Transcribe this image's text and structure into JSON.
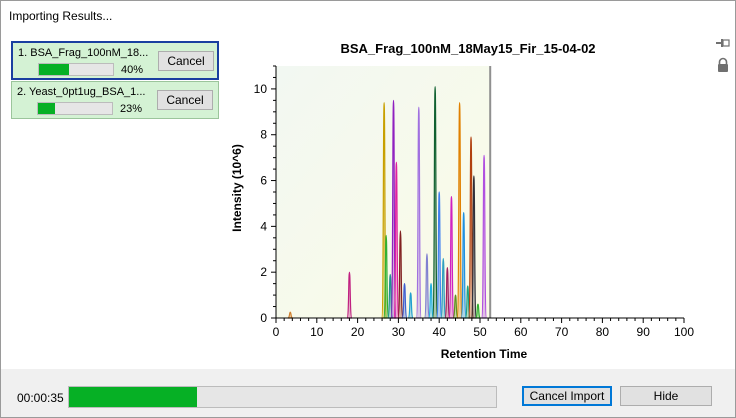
{
  "window": {
    "title": "Importing Results..."
  },
  "icons": {
    "pin": "pin-icon",
    "lock": "lock-icon"
  },
  "jobs": [
    {
      "label": "1. BSA_Frag_100nM_18...",
      "progress": 0.4,
      "percent_text": "40%",
      "cancel_label": "Cancel",
      "active": true
    },
    {
      "label": "2. Yeast_0pt1ug_BSA_1...",
      "progress": 0.23,
      "percent_text": "23%",
      "cancel_label": "Cancel",
      "active": false
    }
  ],
  "footer": {
    "elapsed": "00:00:35",
    "progress": 0.3,
    "cancel_import_label": "Cancel Import",
    "hide_label": "Hide"
  },
  "colors": {
    "progress_green": "#06b025",
    "job_bg": "#d4f2d4",
    "active_border": "#1a3fa0"
  },
  "chart_data": {
    "type": "area",
    "title": "BSA_Frag_100nM_18May15_Fir_15-04-02",
    "xlabel": "Retention Time",
    "ylabel": "Intensity (10^6)",
    "xlim": [
      0,
      100
    ],
    "ylim": [
      0,
      11
    ],
    "xticks": [
      0,
      10,
      20,
      30,
      40,
      50,
      60,
      70,
      80,
      90,
      100
    ],
    "yticks": [
      0,
      2,
      4,
      6,
      8,
      10
    ],
    "grid": false,
    "imported_until": 52.5,
    "peaks": [
      {
        "x": 3.5,
        "y": 0.25,
        "color": "#d08030"
      },
      {
        "x": 18.0,
        "y": 2.0,
        "color": "#c02080"
      },
      {
        "x": 26.5,
        "y": 9.4,
        "color": "#c8a000"
      },
      {
        "x": 27.0,
        "y": 3.6,
        "color": "#30b030"
      },
      {
        "x": 28.0,
        "y": 1.9,
        "color": "#209090"
      },
      {
        "x": 28.8,
        "y": 9.5,
        "color": "#9020c0"
      },
      {
        "x": 29.5,
        "y": 6.8,
        "color": "#e020a0"
      },
      {
        "x": 30.5,
        "y": 3.8,
        "color": "#802020"
      },
      {
        "x": 31.5,
        "y": 1.5,
        "color": "#4060d0"
      },
      {
        "x": 33.0,
        "y": 1.1,
        "color": "#20a0d0"
      },
      {
        "x": 35.0,
        "y": 9.2,
        "color": "#a070e0"
      },
      {
        "x": 37.0,
        "y": 2.8,
        "color": "#8080d0"
      },
      {
        "x": 38.0,
        "y": 1.5,
        "color": "#20b0e0"
      },
      {
        "x": 39.0,
        "y": 10.1,
        "color": "#106030"
      },
      {
        "x": 40.0,
        "y": 5.5,
        "color": "#4080f0"
      },
      {
        "x": 41.0,
        "y": 2.6,
        "color": "#30a0c0"
      },
      {
        "x": 42.0,
        "y": 2.2,
        "color": "#a02060"
      },
      {
        "x": 43.0,
        "y": 5.3,
        "color": "#d020c0"
      },
      {
        "x": 44.0,
        "y": 1.0,
        "color": "#609020"
      },
      {
        "x": 45.0,
        "y": 9.4,
        "color": "#e08000"
      },
      {
        "x": 46.0,
        "y": 4.6,
        "color": "#2090e0"
      },
      {
        "x": 47.0,
        "y": 1.4,
        "color": "#20a080"
      },
      {
        "x": 47.8,
        "y": 7.9,
        "color": "#b04010"
      },
      {
        "x": 48.5,
        "y": 6.2,
        "color": "#30303a"
      },
      {
        "x": 49.5,
        "y": 0.6,
        "color": "#30b030"
      },
      {
        "x": 51.0,
        "y": 7.1,
        "color": "#b050e0"
      }
    ]
  }
}
